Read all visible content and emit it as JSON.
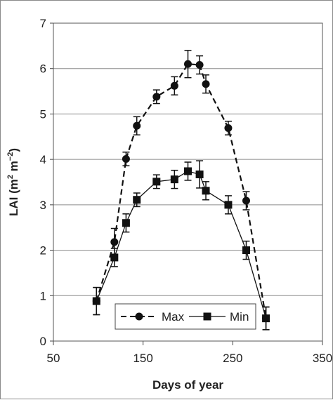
{
  "chart_data": {
    "type": "line",
    "title": "",
    "xlabel": "Days of year",
    "ylabel_prefix": "LAI (m",
    "ylabel_sup1": "2",
    "ylabel_mid": " m",
    "ylabel_sup2": "−2",
    "ylabel_suffix": ")",
    "xlim": [
      50,
      350
    ],
    "ylim": [
      0,
      7
    ],
    "xticks": [
      50,
      150,
      250,
      350
    ],
    "yticks": [
      0,
      1,
      2,
      3,
      4,
      5,
      6,
      7
    ],
    "grid": "horizontal",
    "legend_position": "bottom-left",
    "series": [
      {
        "name": "Max",
        "marker": "circle",
        "line_style": "dashed",
        "x": [
          98,
          118,
          131,
          143,
          165,
          185,
          200,
          213,
          220,
          245,
          265,
          287
        ],
        "y": [
          0.88,
          2.18,
          4.01,
          4.74,
          5.38,
          5.62,
          6.1,
          6.08,
          5.66,
          4.69,
          3.09,
          0.5
        ],
        "err": [
          0.3,
          0.3,
          0.15,
          0.2,
          0.15,
          0.2,
          0.3,
          0.2,
          0.2,
          0.15,
          0.2,
          0.25
        ]
      },
      {
        "name": "Min",
        "marker": "square",
        "line_style": "solid",
        "x": [
          98,
          118,
          131,
          143,
          165,
          185,
          200,
          213,
          220,
          245,
          265,
          287
        ],
        "y": [
          0.88,
          1.84,
          2.6,
          3.11,
          3.51,
          3.56,
          3.74,
          3.67,
          3.31,
          3.0,
          2.0,
          0.5
        ],
        "err": [
          0.3,
          0.2,
          0.2,
          0.15,
          0.15,
          0.2,
          0.2,
          0.3,
          0.2,
          0.2,
          0.2,
          0.25
        ]
      }
    ]
  }
}
